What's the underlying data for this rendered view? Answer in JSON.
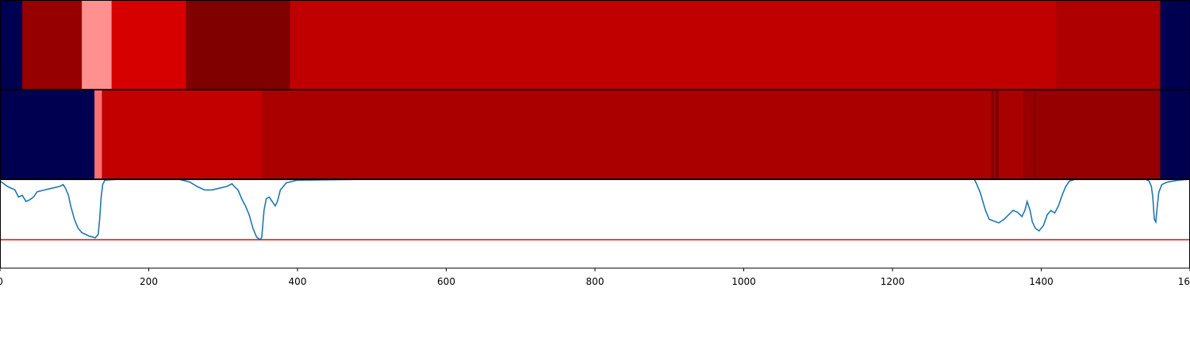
{
  "chart_data": {
    "type": "heatmap",
    "title": "",
    "xlabel": "",
    "ylabel": "",
    "xlim": [
      0,
      1600
    ],
    "x_tick_labels": [
      "0",
      "200",
      "400",
      "600",
      "800",
      "1000",
      "1200",
      "1400",
      "1600"
    ],
    "x_tick_values": [
      0,
      200,
      400,
      600,
      800,
      1000,
      1200,
      1400,
      1600
    ],
    "grid": false,
    "legend": "none",
    "tracks": [
      {
        "type": "segment-heatmap",
        "segments": [
          {
            "start": 0,
            "end": 30,
            "color": "#000050"
          },
          {
            "start": 30,
            "end": 110,
            "color": "#960000"
          },
          {
            "start": 110,
            "end": 150,
            "color": "#ff9090"
          },
          {
            "start": 150,
            "end": 250,
            "color": "#d60000"
          },
          {
            "start": 250,
            "end": 390,
            "color": "#800000"
          },
          {
            "start": 390,
            "end": 1420,
            "color": "#c00000"
          },
          {
            "start": 1420,
            "end": 1560,
            "color": "#ae0000"
          },
          {
            "start": 1560,
            "end": 1600,
            "color": "#000050"
          }
        ]
      },
      {
        "type": "segment-heatmap",
        "segments": [
          {
            "start": 0,
            "end": 127,
            "color": "#000050"
          },
          {
            "start": 127,
            "end": 137,
            "color": "#f97070"
          },
          {
            "start": 137,
            "end": 352,
            "color": "#c20000"
          },
          {
            "start": 352,
            "end": 1333,
            "color": "#aa0000"
          },
          {
            "start": 1333,
            "end": 1336,
            "color": "#7d0000"
          },
          {
            "start": 1336,
            "end": 1339,
            "color": "#a00000"
          },
          {
            "start": 1339,
            "end": 1343,
            "color": "#7d0000"
          },
          {
            "start": 1343,
            "end": 1376,
            "color": "#a90000"
          },
          {
            "start": 1376,
            "end": 1390,
            "color": "#960000"
          },
          {
            "start": 1390,
            "end": 1393,
            "color": "#850000"
          },
          {
            "start": 1393,
            "end": 1560,
            "color": "#960000"
          },
          {
            "start": 1560,
            "end": 1600,
            "color": "#000050"
          }
        ]
      },
      {
        "type": "line",
        "ylim": [
          -1.0,
          0.0
        ],
        "line_color": "#1f77b4",
        "threshold": -0.68,
        "threshold_color": "#e31a1c",
        "points": [
          [
            0,
            -0.02
          ],
          [
            10,
            -0.08
          ],
          [
            20,
            -0.12
          ],
          [
            25,
            -0.2
          ],
          [
            30,
            -0.18
          ],
          [
            35,
            -0.25
          ],
          [
            40,
            -0.23
          ],
          [
            45,
            -0.2
          ],
          [
            50,
            -0.14
          ],
          [
            60,
            -0.12
          ],
          [
            70,
            -0.1
          ],
          [
            80,
            -0.08
          ],
          [
            85,
            -0.06
          ],
          [
            88,
            -0.1
          ],
          [
            92,
            -0.18
          ],
          [
            95,
            -0.3
          ],
          [
            100,
            -0.45
          ],
          [
            105,
            -0.55
          ],
          [
            110,
            -0.6
          ],
          [
            115,
            -0.62
          ],
          [
            120,
            -0.64
          ],
          [
            125,
            -0.65
          ],
          [
            128,
            -0.66
          ],
          [
            132,
            -0.62
          ],
          [
            134,
            -0.45
          ],
          [
            136,
            -0.2
          ],
          [
            138,
            -0.06
          ],
          [
            141,
            -0.01
          ],
          [
            160,
            0.0
          ],
          [
            200,
            0.0
          ],
          [
            240,
            0.0
          ],
          [
            255,
            -0.03
          ],
          [
            265,
            -0.08
          ],
          [
            275,
            -0.12
          ],
          [
            285,
            -0.12
          ],
          [
            295,
            -0.1
          ],
          [
            305,
            -0.08
          ],
          [
            312,
            -0.05
          ],
          [
            315,
            -0.08
          ],
          [
            320,
            -0.12
          ],
          [
            325,
            -0.22
          ],
          [
            330,
            -0.3
          ],
          [
            335,
            -0.4
          ],
          [
            340,
            -0.55
          ],
          [
            345,
            -0.65
          ],
          [
            350,
            -0.68
          ],
          [
            352,
            -0.65
          ],
          [
            353,
            -0.55
          ],
          [
            355,
            -0.35
          ],
          [
            358,
            -0.22
          ],
          [
            362,
            -0.2
          ],
          [
            366,
            -0.25
          ],
          [
            370,
            -0.3
          ],
          [
            373,
            -0.25
          ],
          [
            377,
            -0.12
          ],
          [
            385,
            -0.04
          ],
          [
            400,
            -0.01
          ],
          [
            500,
            0.0
          ],
          [
            800,
            0.0
          ],
          [
            1100,
            0.0
          ],
          [
            1310,
            0.0
          ],
          [
            1313,
            -0.05
          ],
          [
            1318,
            -0.15
          ],
          [
            1325,
            -0.35
          ],
          [
            1330,
            -0.45
          ],
          [
            1336,
            -0.47
          ],
          [
            1343,
            -0.49
          ],
          [
            1350,
            -0.45
          ],
          [
            1356,
            -0.4
          ],
          [
            1362,
            -0.35
          ],
          [
            1368,
            -0.37
          ],
          [
            1374,
            -0.42
          ],
          [
            1378,
            -0.35
          ],
          [
            1381,
            -0.25
          ],
          [
            1385,
            -0.35
          ],
          [
            1388,
            -0.48
          ],
          [
            1392,
            -0.55
          ],
          [
            1397,
            -0.58
          ],
          [
            1403,
            -0.52
          ],
          [
            1408,
            -0.4
          ],
          [
            1413,
            -0.35
          ],
          [
            1418,
            -0.38
          ],
          [
            1423,
            -0.3
          ],
          [
            1428,
            -0.18
          ],
          [
            1433,
            -0.08
          ],
          [
            1438,
            -0.02
          ],
          [
            1446,
            0.0
          ],
          [
            1540,
            0.0
          ],
          [
            1545,
            -0.02
          ],
          [
            1548,
            -0.08
          ],
          [
            1550,
            -0.2
          ],
          [
            1552,
            -0.45
          ],
          [
            1554,
            -0.48
          ],
          [
            1556,
            -0.3
          ],
          [
            1558,
            -0.15
          ],
          [
            1562,
            -0.06
          ],
          [
            1570,
            -0.03
          ],
          [
            1585,
            -0.01
          ],
          [
            1600,
            0.0
          ]
        ]
      }
    ]
  }
}
